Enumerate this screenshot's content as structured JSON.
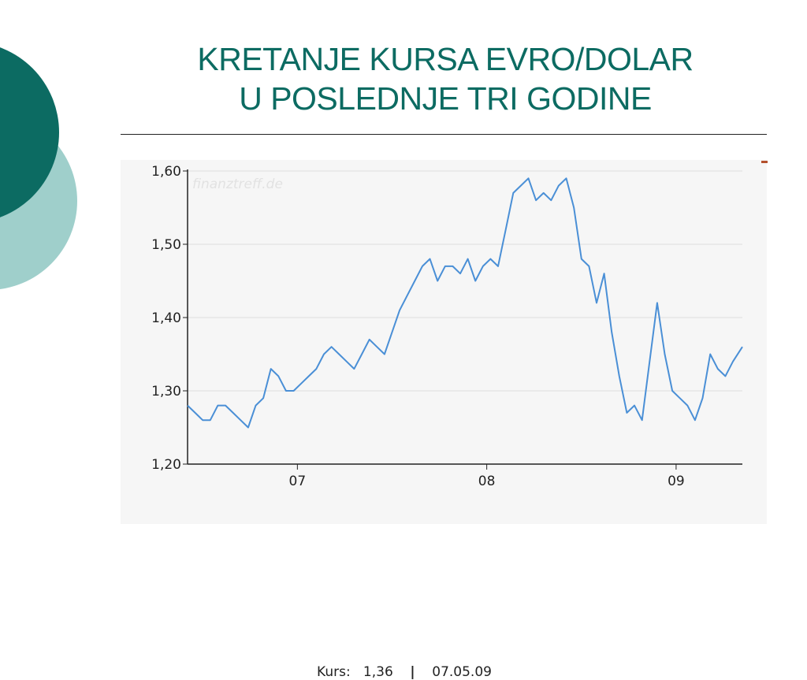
{
  "slide": {
    "title_line1": "KRETANJE KURSA EVRO/DOLAR",
    "title_line2": "U POSLEDNJE TRI GODINE"
  },
  "colors": {
    "title": "#0c6b62",
    "decor_dark": "#0c6b62",
    "decor_light": "#9fcfcb",
    "series": "#4a8fd6",
    "grid": "#dddddd",
    "axis": "#222222"
  },
  "footer": {
    "label": "Kurs:",
    "value": "1,36",
    "separator": "|",
    "date": "07.05.09"
  },
  "chart_data": {
    "type": "line",
    "watermark": "finanztreff.de",
    "xlim": [
      2006.42,
      2009.35
    ],
    "ylim": [
      1.2,
      1.6
    ],
    "yticks": [
      {
        "value": 1.2,
        "label": "1,20"
      },
      {
        "value": 1.3,
        "label": "1,30"
      },
      {
        "value": 1.4,
        "label": "1,40"
      },
      {
        "value": 1.5,
        "label": "1,50"
      },
      {
        "value": 1.6,
        "label": "1,60"
      }
    ],
    "xticks": [
      {
        "value": 2007.0,
        "label": "07"
      },
      {
        "value": 2008.0,
        "label": "08"
      },
      {
        "value": 2009.0,
        "label": "09"
      }
    ],
    "grid": true,
    "series": [
      {
        "name": "",
        "x": [
          2006.42,
          2006.46,
          2006.5,
          2006.54,
          2006.58,
          2006.62,
          2006.66,
          2006.7,
          2006.74,
          2006.78,
          2006.82,
          2006.86,
          2006.9,
          2006.94,
          2006.98,
          2007.02,
          2007.06,
          2007.1,
          2007.14,
          2007.18,
          2007.22,
          2007.26,
          2007.3,
          2007.34,
          2007.38,
          2007.42,
          2007.46,
          2007.5,
          2007.54,
          2007.58,
          2007.62,
          2007.66,
          2007.7,
          2007.74,
          2007.78,
          2007.82,
          2007.86,
          2007.9,
          2007.94,
          2007.98,
          2008.02,
          2008.06,
          2008.1,
          2008.14,
          2008.18,
          2008.22,
          2008.26,
          2008.3,
          2008.34,
          2008.38,
          2008.42,
          2008.46,
          2008.5,
          2008.54,
          2008.58,
          2008.62,
          2008.66,
          2008.7,
          2008.74,
          2008.78,
          2008.82,
          2008.86,
          2008.9,
          2008.94,
          2008.98,
          2009.02,
          2009.06,
          2009.1,
          2009.14,
          2009.18,
          2009.22,
          2009.26,
          2009.3,
          2009.35
        ],
        "y": [
          1.28,
          1.27,
          1.26,
          1.26,
          1.28,
          1.28,
          1.27,
          1.26,
          1.25,
          1.28,
          1.29,
          1.33,
          1.32,
          1.3,
          1.3,
          1.31,
          1.32,
          1.33,
          1.35,
          1.36,
          1.35,
          1.34,
          1.33,
          1.35,
          1.37,
          1.36,
          1.35,
          1.38,
          1.41,
          1.43,
          1.45,
          1.47,
          1.48,
          1.45,
          1.47,
          1.47,
          1.46,
          1.48,
          1.45,
          1.47,
          1.48,
          1.47,
          1.52,
          1.57,
          1.58,
          1.59,
          1.56,
          1.57,
          1.56,
          1.58,
          1.59,
          1.55,
          1.48,
          1.47,
          1.42,
          1.46,
          1.38,
          1.32,
          1.27,
          1.28,
          1.26,
          1.34,
          1.42,
          1.35,
          1.3,
          1.29,
          1.28,
          1.26,
          1.29,
          1.35,
          1.33,
          1.32,
          1.34,
          1.36
        ]
      }
    ]
  }
}
